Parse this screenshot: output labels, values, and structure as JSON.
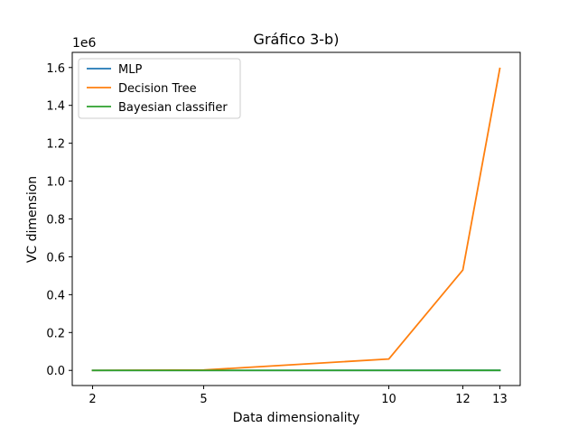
{
  "chart_data": {
    "type": "line",
    "title": "Gráfico 3-b)",
    "xlabel": "Data dimensionality",
    "ylabel": "VC dimension",
    "y_multiplier_label": "1e6",
    "x": [
      2,
      5,
      10,
      12,
      13
    ],
    "x_ticks": [
      2,
      5,
      10,
      12,
      13
    ],
    "x_tick_labels": [
      "2",
      "5",
      "10",
      "12",
      "13"
    ],
    "xlim": [
      1.45,
      13.55
    ],
    "y_ticks": [
      0,
      0.2,
      0.4,
      0.6,
      0.8,
      1.0,
      1.2,
      1.4,
      1.6
    ],
    "y_tick_labels": [
      "0.0",
      "0.2",
      "0.4",
      "0.6",
      "0.8",
      "1.0",
      "1.2",
      "1.4",
      "1.6"
    ],
    "ylim": [
      -0.08,
      1.68
    ],
    "grid": false,
    "legend_position": "top-left",
    "series": [
      {
        "name": "MLP",
        "color": "#1f77b4",
        "values": [
          2e-05,
          5e-05,
          0.0001,
          0.00012,
          0.00013
        ]
      },
      {
        "name": "Decision Tree",
        "color": "#ff7f0e",
        "values": [
          0.0,
          0.002,
          0.06,
          0.53,
          1.595
        ]
      },
      {
        "name": "Bayesian classifier",
        "color": "#2ca02c",
        "values": [
          1e-05,
          2e-05,
          5e-05,
          7e-05,
          8e-05
        ]
      }
    ]
  }
}
